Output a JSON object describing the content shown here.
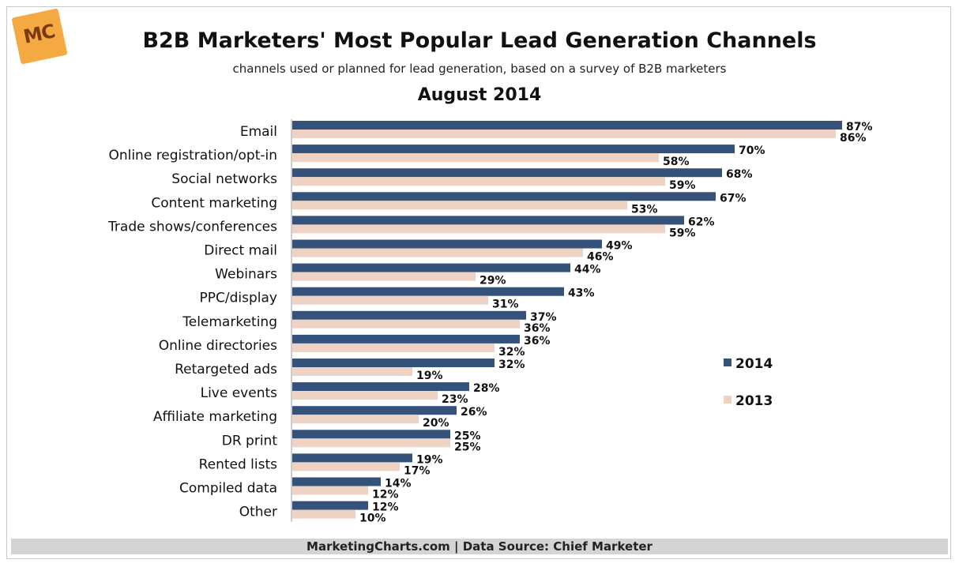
{
  "logo": {
    "text": "MC",
    "color": "#f5a943"
  },
  "header": {
    "title": "B2B Marketers' Most Popular Lead Generation Channels",
    "subtitle": "channels used or planned for lead generation, based on a survey of B2B marketers",
    "period": "August 2014"
  },
  "footer": {
    "text": "MarketingCharts.com | Data Source: Chief Marketer"
  },
  "chart_data": {
    "type": "bar",
    "orientation": "horizontal",
    "categories": [
      "Email",
      "Online registration/opt-in",
      "Social networks",
      "Content marketing",
      "Trade shows/conferences",
      "Direct mail",
      "Webinars",
      "PPC/display",
      "Telemarketing",
      "Online directories",
      "Retargeted ads",
      "Live events",
      "Affiliate marketing",
      "DR print",
      "Rented lists",
      "Compiled data",
      "Other"
    ],
    "series": [
      {
        "name": "2014",
        "color": "#34527a",
        "values": [
          87,
          70,
          68,
          67,
          62,
          49,
          44,
          43,
          37,
          36,
          32,
          28,
          26,
          25,
          19,
          14,
          12
        ]
      },
      {
        "name": "2013",
        "color": "#eed2c3",
        "values": [
          86,
          58,
          59,
          53,
          59,
          46,
          29,
          31,
          36,
          32,
          19,
          23,
          20,
          25,
          17,
          12,
          10
        ]
      }
    ],
    "value_suffix": "%",
    "xlim": [
      0,
      100
    ],
    "grid": false,
    "legend": "right"
  }
}
